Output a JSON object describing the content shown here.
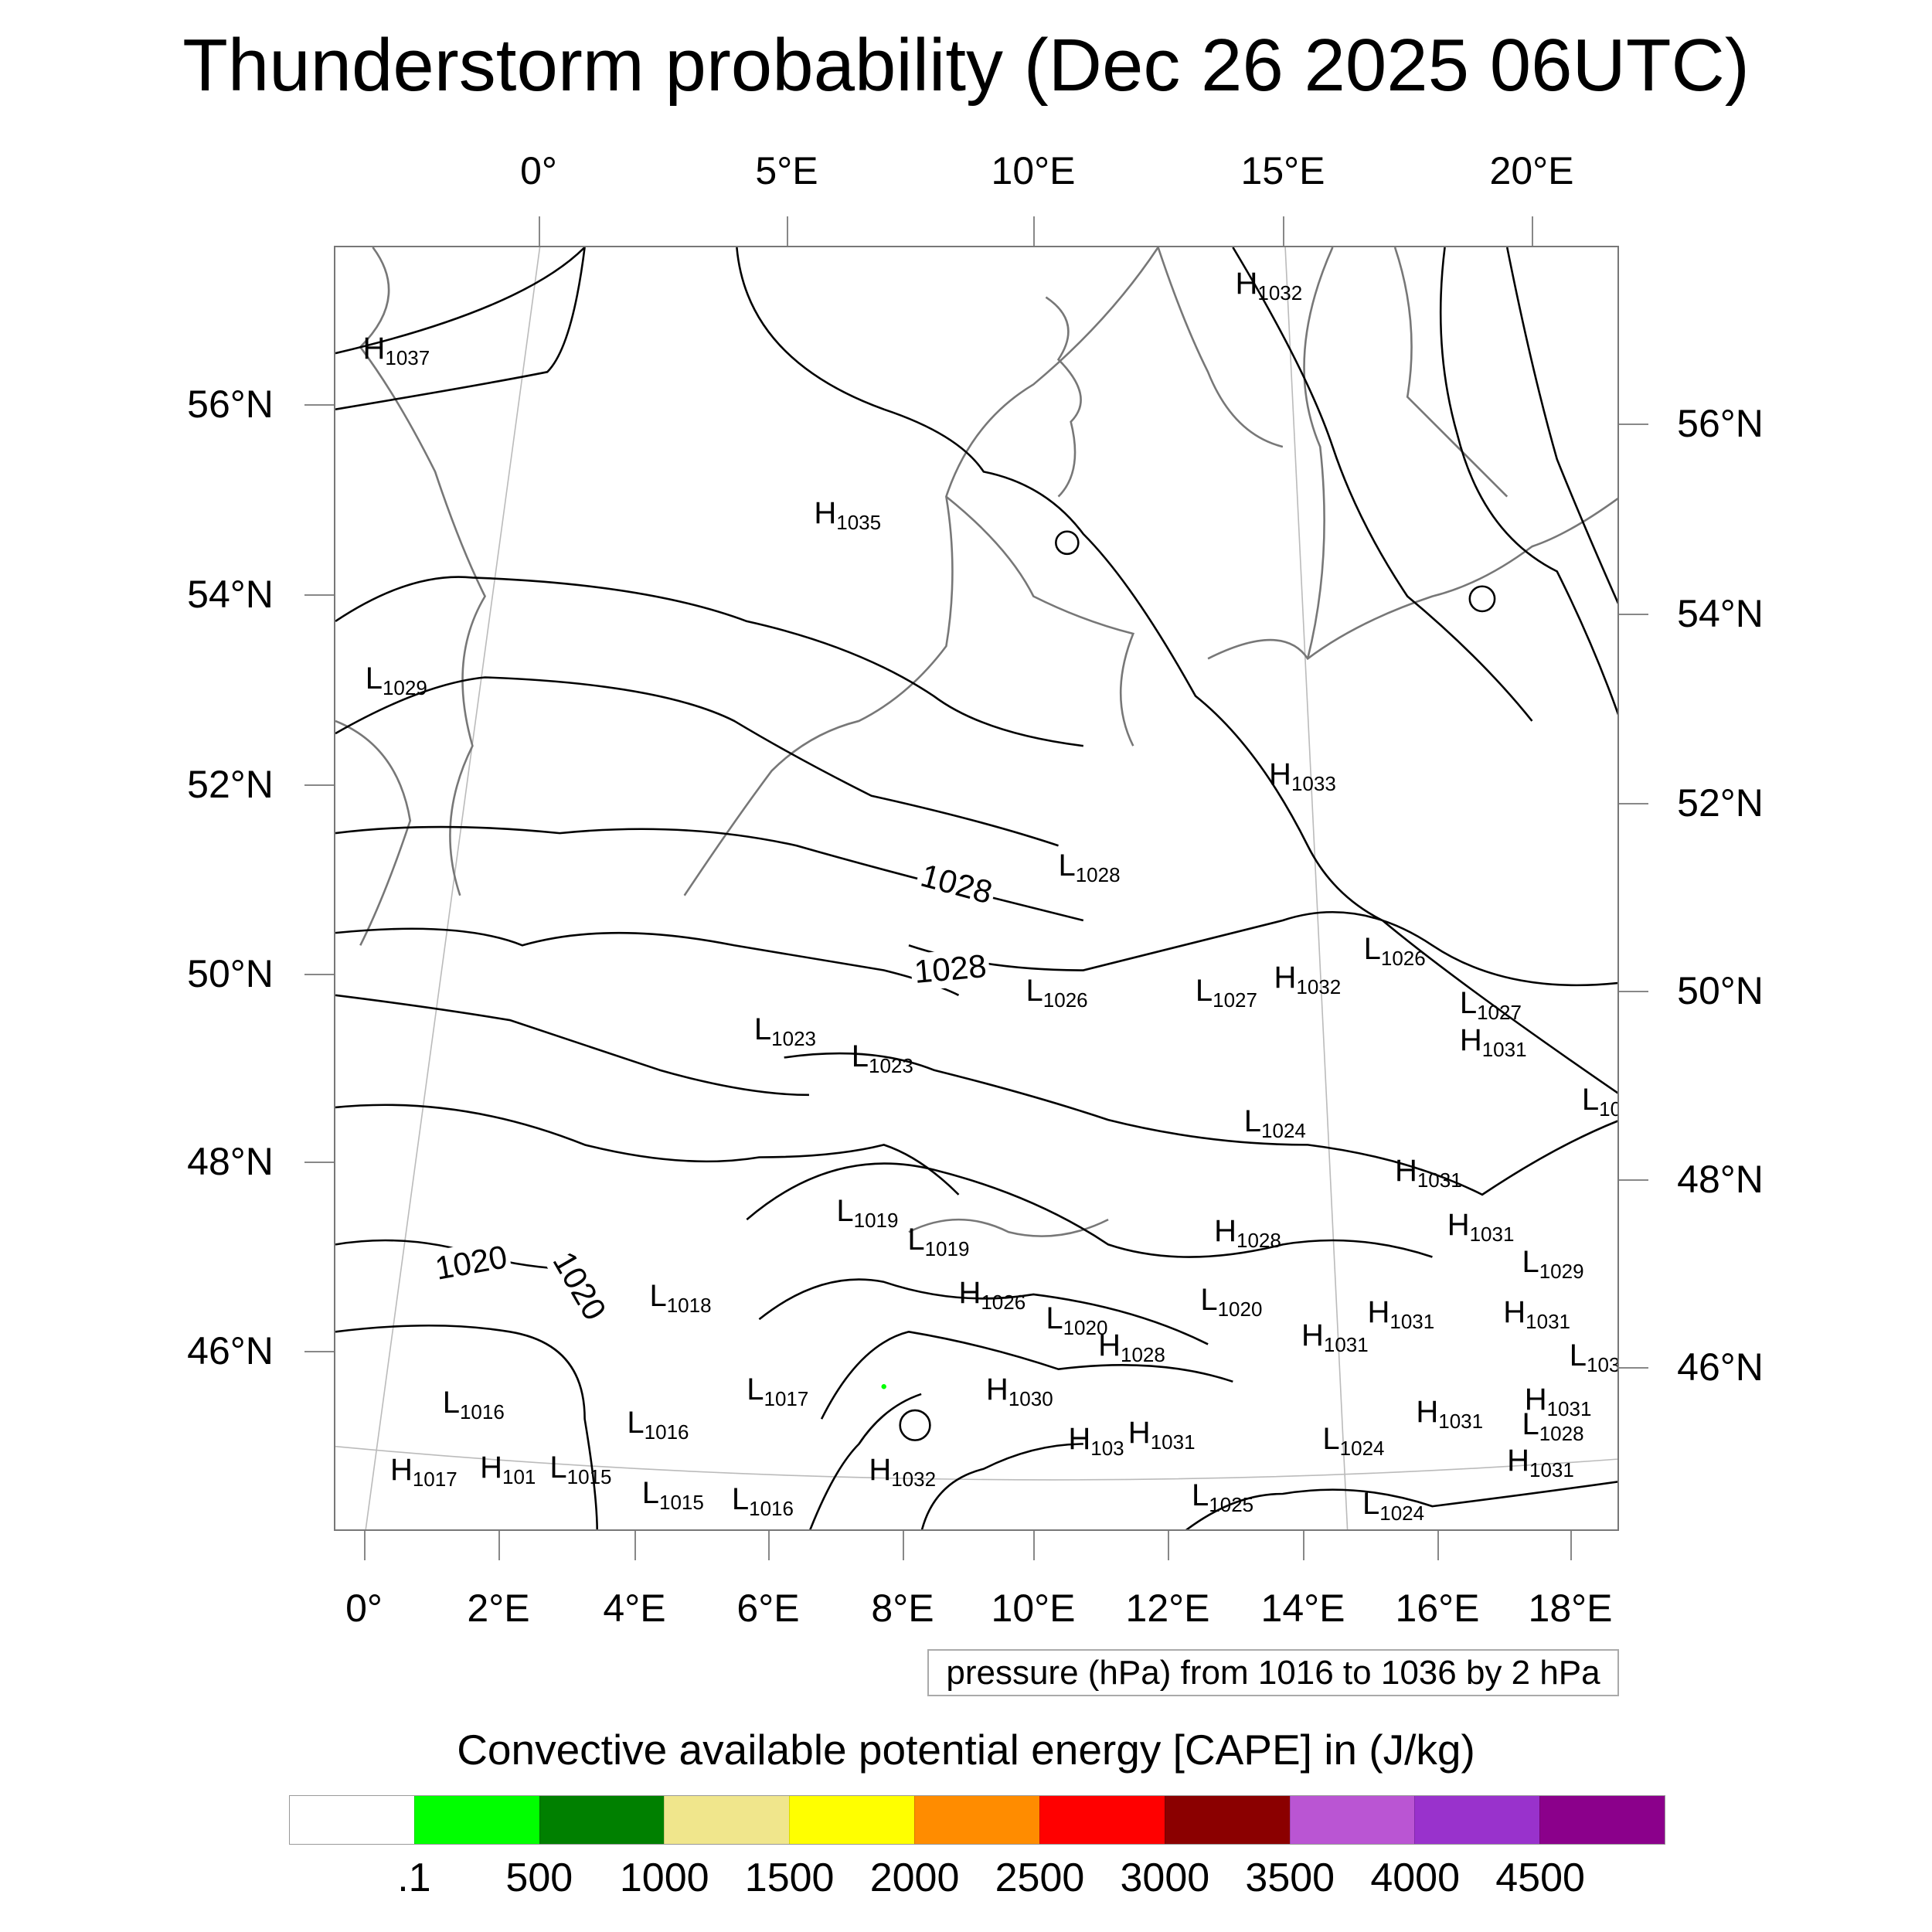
{
  "title": "Thunderstorm probability (Dec 26 2025 06UTC)",
  "axes": {
    "top_lon": [
      "0°",
      "5°E",
      "10°E",
      "15°E",
      "20°E"
    ],
    "bottom_lon": [
      "0°",
      "2°E",
      "4°E",
      "6°E",
      "8°E",
      "10°E",
      "12°E",
      "14°E",
      "16°E",
      "18°E"
    ],
    "left_lat": [
      "56°N",
      "54°N",
      "52°N",
      "50°N",
      "48°N",
      "46°N"
    ],
    "right_lat": [
      "56°N",
      "54°N",
      "52°N",
      "50°N",
      "48°N",
      "46°N"
    ]
  },
  "contour_legend": "pressure (hPa) from 1016 to 1036 by 2 hPa",
  "contour_labels": [
    "1028",
    "1028",
    "1020",
    "1020"
  ],
  "pressure_centers": [
    {
      "t": "H",
      "v": "1037"
    },
    {
      "t": "H",
      "v": "1032"
    },
    {
      "t": "H",
      "v": "1035"
    },
    {
      "t": "L",
      "v": "1029"
    },
    {
      "t": "H",
      "v": "1033"
    },
    {
      "t": "L",
      "v": "1028"
    },
    {
      "t": "L",
      "v": "1026"
    },
    {
      "t": "H",
      "v": "1032"
    },
    {
      "t": "L",
      "v": "1027"
    },
    {
      "t": "L",
      "v": "1026"
    },
    {
      "t": "L",
      "v": "1027"
    },
    {
      "t": "H",
      "v": "1031"
    },
    {
      "t": "L",
      "v": "1023"
    },
    {
      "t": "L",
      "v": "1023"
    },
    {
      "t": "L",
      "v": "10"
    },
    {
      "t": "L",
      "v": "1024"
    },
    {
      "t": "H",
      "v": "1031"
    },
    {
      "t": "L",
      "v": "1019"
    },
    {
      "t": "L",
      "v": "1019"
    },
    {
      "t": "H",
      "v": "1028"
    },
    {
      "t": "H",
      "v": "1031"
    },
    {
      "t": "L",
      "v": "1029"
    },
    {
      "t": "L",
      "v": "1018"
    },
    {
      "t": "H",
      "v": "1026"
    },
    {
      "t": "L",
      "v": "1020"
    },
    {
      "t": "L",
      "v": "1020"
    },
    {
      "t": "H",
      "v": "1031"
    },
    {
      "t": "H",
      "v": "1031"
    },
    {
      "t": "H",
      "v": "1028"
    },
    {
      "t": "H",
      "v": "1031"
    },
    {
      "t": "L",
      "v": "103"
    },
    {
      "t": "L",
      "v": "1016"
    },
    {
      "t": "L",
      "v": "1017"
    },
    {
      "t": "H",
      "v": "1030"
    },
    {
      "t": "L",
      "v": "1016"
    },
    {
      "t": "H",
      "v": "1031"
    },
    {
      "t": "H",
      "v": "1031"
    },
    {
      "t": "L",
      "v": "1028"
    },
    {
      "t": "H",
      "v": "103"
    },
    {
      "t": "H",
      "v": "1031"
    },
    {
      "t": "L",
      "v": "1024"
    },
    {
      "t": "H",
      "v": "1031"
    },
    {
      "t": "H",
      "v": "1017"
    },
    {
      "t": "H",
      "v": "101"
    },
    {
      "t": "L",
      "v": "1015"
    },
    {
      "t": "H",
      "v": "1032"
    },
    {
      "t": "L",
      "v": "1015"
    },
    {
      "t": "L",
      "v": "1016"
    },
    {
      "t": "L",
      "v": "1025"
    },
    {
      "t": "L",
      "v": "1024"
    }
  ],
  "chart_data": {
    "type": "map-contour",
    "title": "Thunderstorm probability (Dec 26 2025 06UTC)",
    "fill_variable": "Convective available potential energy [CAPE] in (J/kg)",
    "contour_variable": "pressure (hPa) from 1016 to 1036 by 2 hPa",
    "contour_range": [
      1016,
      1036
    ],
    "contour_interval": 2,
    "colorbar": {
      "labels": [
        ".1",
        "500",
        "1000",
        "1500",
        "2000",
        "2500",
        "3000",
        "3500",
        "4000",
        "4500"
      ],
      "colors": [
        "#ffffff",
        "#00ff00",
        "#008000",
        "#f0e68c",
        "#ffff00",
        "#ff8c00",
        "#ff0000",
        "#8b0000",
        "#ba55d3",
        "#9932cc",
        "#8b008b"
      ]
    },
    "lon_range": [
      0,
      19
    ],
    "lat_range": [
      44.5,
      57.5
    ]
  }
}
